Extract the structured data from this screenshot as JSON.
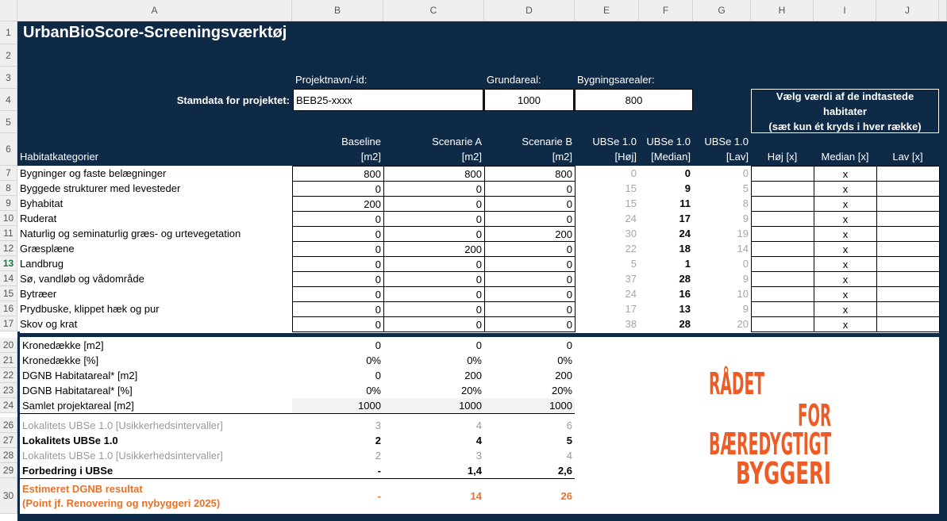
{
  "column_letters": [
    "A",
    "B",
    "C",
    "D",
    "E",
    "F",
    "G",
    "H",
    "I",
    "J"
  ],
  "row_numbers": [
    1,
    2,
    3,
    4,
    5,
    6,
    7,
    8,
    9,
    10,
    11,
    12,
    13,
    14,
    15,
    16,
    17,
    20,
    21,
    22,
    23,
    24,
    26,
    27,
    28,
    29,
    30
  ],
  "title": "UrbanBioScore-Screeningsværktøj",
  "project": {
    "label": "Stamdata for projektet:",
    "fields": [
      {
        "label": "Projektnavn/-id:",
        "value": "BEB25-xxxx"
      },
      {
        "label": "Grundareal:",
        "value": 1000
      },
      {
        "label": "Bygningsarealer:",
        "value": 800
      }
    ]
  },
  "selection_header": [
    "Vælg værdi af de indtastede habitater",
    "(sæt kun ét kryds i hver række)"
  ],
  "habitat_table": {
    "headers": [
      [
        "Habitatkategorier"
      ],
      [
        "Baseline",
        "[m2]"
      ],
      [
        "Scenarie A",
        "[m2]"
      ],
      [
        "Scenarie B",
        "[m2]"
      ],
      [
        "UBSe 1.0",
        "[Høj]"
      ],
      [
        "UBSe 1.0",
        "[Median]"
      ],
      [
        "UBSe 1.0",
        "[Lav]"
      ],
      [
        "Høj [x]"
      ],
      [
        "Median [x]"
      ],
      [
        "Lav [x]"
      ]
    ],
    "rows": [
      [
        "Bygninger og faste belægninger",
        800,
        800,
        800,
        0,
        0,
        0,
        null,
        "x",
        null
      ],
      [
        "Byggede strukturer med levesteder",
        0,
        0,
        0,
        15,
        9,
        5,
        null,
        "x",
        null
      ],
      [
        "Byhabitat",
        200,
        0,
        0,
        15,
        11,
        8,
        null,
        "x",
        null
      ],
      [
        "Ruderat",
        0,
        0,
        0,
        24,
        17,
        9,
        null,
        "x",
        null
      ],
      [
        "Naturlig og seminaturlig græs- og urtevegetation",
        0,
        0,
        200,
        30,
        24,
        19,
        null,
        "x",
        null
      ],
      [
        "Græsplæne",
        0,
        200,
        0,
        22,
        18,
        14,
        null,
        "x",
        null
      ],
      [
        "Landbrug",
        0,
        0,
        0,
        5,
        1,
        0,
        null,
        "x",
        null
      ],
      [
        "Sø, vandløb og vådområde",
        0,
        0,
        0,
        37,
        28,
        9,
        null,
        "x",
        null
      ],
      [
        "Bytræer",
        0,
        0,
        0,
        24,
        16,
        10,
        null,
        "x",
        null
      ],
      [
        "Prydbuske, klippet hæk og pur",
        0,
        0,
        0,
        17,
        13,
        9,
        null,
        "x",
        null
      ],
      [
        "Skov og krat",
        0,
        0,
        0,
        38,
        28,
        20,
        null,
        "x",
        null
      ]
    ]
  },
  "summary": {
    "rows": [
      {
        "label": [
          "Kronedække [m2]"
        ],
        "values": [
          0,
          0,
          0
        ]
      },
      {
        "label": [
          "Kronedække [%]"
        ],
        "values": [
          "0%",
          "0%",
          "0%"
        ]
      },
      {
        "label": [
          "DGNB Habitatareal* [m2]"
        ],
        "values": [
          0,
          200,
          200
        ]
      },
      {
        "label": [
          "DGNB Habitatareal* [%]"
        ],
        "values": [
          "0%",
          "20%",
          "20%"
        ]
      },
      {
        "label": [
          "Samlet projektareal [m2]"
        ],
        "values": [
          1000,
          1000,
          1000
        ]
      },
      {
        "label": [
          "Lokalitets UBSe 1.0 [Usikkerhedsintervaller]"
        ],
        "values": [
          3,
          4,
          6
        ]
      },
      {
        "label": [
          "Lokalitets UBSe 1.0"
        ],
        "values": [
          2,
          4,
          5
        ]
      },
      {
        "label": [
          "Lokalitets UBSe 1.0 [Usikkerhedsintervaller]"
        ],
        "values": [
          2,
          3,
          4
        ]
      },
      {
        "label": [
          "Forbedring i UBSe"
        ],
        "values": [
          "-",
          "1,4",
          "2,6"
        ]
      },
      {
        "label": [
          "Estimeret DGNB resultat",
          "(Point jf. Renovering og nybyggeri 2025)"
        ],
        "values": [
          "-",
          14,
          26
        ]
      }
    ]
  },
  "logo": [
    "RÅDET",
    "FOR",
    "BÆREDYGTIGT",
    "BYGGERI"
  ]
}
